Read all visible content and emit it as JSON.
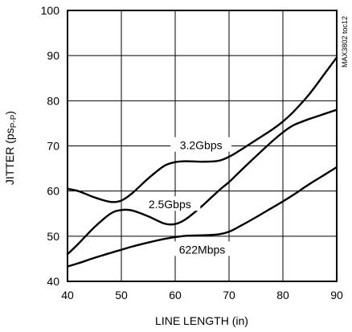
{
  "chart_data": {
    "type": "line",
    "title": "",
    "xlabel": "LINE LENGTH (in)",
    "ylabel_main": "JITTER (ps",
    "ylabel_sub": "P-P",
    "ylabel_close": ")",
    "xlim": [
      40,
      90
    ],
    "ylim": [
      40,
      100
    ],
    "xticks": [
      40,
      50,
      60,
      70,
      80,
      90
    ],
    "yticks": [
      40,
      50,
      60,
      70,
      80,
      90,
      100
    ],
    "grid": true,
    "part_id": "MAX3802 toc12",
    "series": [
      {
        "name": "3.2Gbps",
        "x": [
          40,
          42,
          45,
          48,
          50,
          52,
          55,
          58,
          60,
          62,
          65,
          68,
          70,
          72,
          75,
          78,
          80,
          82,
          85,
          88,
          90
        ],
        "y": [
          60.5,
          60,
          58.6,
          57.6,
          57.9,
          59.5,
          62.8,
          65.6,
          66.4,
          66.6,
          66.5,
          66.7,
          67.6,
          69,
          71.3,
          73.6,
          75.4,
          77.6,
          81.6,
          86.4,
          89.6
        ]
      },
      {
        "name": "2.5Gbps",
        "x": [
          40,
          42,
          45,
          48,
          50,
          52,
          55,
          58,
          60,
          62,
          65,
          68,
          70,
          72,
          75,
          78,
          80,
          82,
          85,
          88,
          90
        ],
        "y": [
          46,
          48.3,
          52,
          55,
          55.8,
          55.7,
          54.4,
          52.8,
          52.7,
          53.8,
          56.7,
          60,
          62,
          64.3,
          67.7,
          71,
          73,
          74.6,
          76,
          77.2,
          78
        ]
      },
      {
        "name": "622Mbps",
        "x": [
          40,
          42,
          45,
          48,
          50,
          52,
          55,
          58,
          60,
          62,
          65,
          68,
          70,
          72,
          75,
          78,
          80,
          82,
          85,
          88,
          90
        ],
        "y": [
          43.3,
          44,
          45.2,
          46.3,
          47,
          47.7,
          48.6,
          49.4,
          49.8,
          50.1,
          50.2,
          50.4,
          51,
          52.2,
          54.2,
          56.3,
          57.7,
          59.2,
          61.6,
          63.8,
          65.3
        ]
      }
    ],
    "label_positions": [
      {
        "series": "3.2Gbps",
        "x": 64.8,
        "y": 69.8
      },
      {
        "series": "2.5Gbps",
        "x": 59,
        "y": 56.7
      },
      {
        "series": "622Mbps",
        "x": 65,
        "y": 46.7
      }
    ]
  }
}
